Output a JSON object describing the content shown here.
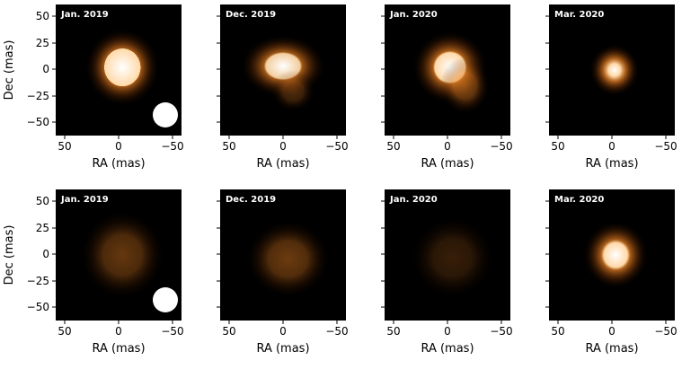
{
  "figure": {
    "xlabel": "RA (mas)",
    "ylabel": "Dec (mas)",
    "x_ticks": [
      "50",
      "0",
      "−50"
    ],
    "y_ticks": [
      "50",
      "25",
      "0",
      "−25",
      "−50"
    ],
    "rows": [
      {
        "panels": [
          {
            "label": "Jan. 2019",
            "beam": true,
            "peak": 1.0,
            "shape": "round-bright"
          },
          {
            "label": "Dec. 2019",
            "beam": false,
            "peak": 1.0,
            "shape": "elongated"
          },
          {
            "label": "Jan. 2020",
            "beam": false,
            "peak": 1.0,
            "shape": "bright-with-tail"
          },
          {
            "label": "Mar. 2020",
            "beam": false,
            "peak": 1.0,
            "shape": "compact"
          }
        ]
      },
      {
        "panels": [
          {
            "label": "Jan. 2019",
            "beam": true,
            "peak": 0.6,
            "shape": "diffuse"
          },
          {
            "label": "Dec. 2019",
            "beam": false,
            "peak": 0.62,
            "shape": "diffuse-elongated"
          },
          {
            "label": "Jan. 2020",
            "beam": false,
            "peak": 0.45,
            "shape": "faint-diffuse"
          },
          {
            "label": "Mar. 2020",
            "beam": false,
            "peak": 1.0,
            "shape": "compact-bright"
          }
        ]
      }
    ]
  },
  "colors": {
    "background": "#000000",
    "emission": "#e07b20",
    "core": "#ffffff",
    "beam": "#ffffff"
  }
}
